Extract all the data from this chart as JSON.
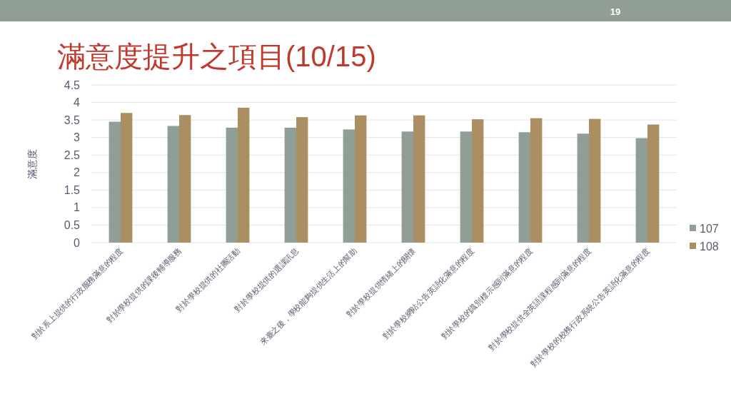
{
  "chart_data": {
    "type": "bar",
    "title": "滿意度提升之項目(10/15)",
    "ylabel": "滿意度",
    "categories": [
      "對於系上提供的行政服務滿意的程度",
      "對於學校提供的課後輔導服務",
      "對於學校提供的社團活動",
      "對於學校提供的選課訊息",
      "來臺之後，學校能夠提供生活上的幫助",
      "對於學校提供情緒上的關懷",
      "對於學校網站公告英語化滿意的程度",
      "對於學校的識別標示感到滿意的程度",
      "對於學校提供全英語課程感到滿意的程度",
      "對於學校的校務行政系統公告英語化滿意的程度"
    ],
    "series": [
      {
        "name": "107",
        "color": "#8f9f96",
        "values": [
          3.45,
          3.33,
          3.28,
          3.28,
          3.23,
          3.17,
          3.17,
          3.15,
          3.11,
          2.98
        ]
      },
      {
        "name": "108",
        "color": "#ac8e63",
        "values": [
          3.7,
          3.64,
          3.85,
          3.58,
          3.63,
          3.63,
          3.52,
          3.55,
          3.53,
          3.37
        ]
      }
    ],
    "ylim": [
      0,
      4.5
    ],
    "yticks": [
      0,
      0.5,
      1,
      1.5,
      2,
      2.5,
      3,
      3.5,
      4,
      4.5
    ],
    "grid": "y",
    "legend": "right",
    "annotations": [
      "19"
    ]
  }
}
